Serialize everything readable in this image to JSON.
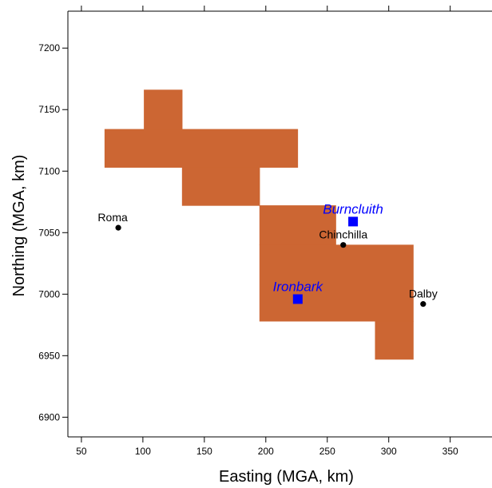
{
  "chart_data": {
    "type": "scatter",
    "title": "",
    "xlabel": "Easting (MGA, km)",
    "ylabel": "Northing (MGA, km)",
    "xlim": [
      39,
      384
    ],
    "ylim": [
      6884,
      7230
    ],
    "xticks": [
      50,
      100,
      150,
      200,
      250,
      300,
      350
    ],
    "yticks": [
      6900,
      6950,
      7000,
      7050,
      7100,
      7150,
      7200
    ],
    "top_ticks": [
      50,
      100,
      150,
      200,
      250,
      300,
      350
    ],
    "grid": false,
    "legend": "none",
    "region_color": "#CC6633",
    "region_blocks": [
      {
        "x": [
          101,
          132
        ],
        "y": [
          7134,
          7166
        ]
      },
      {
        "x": [
          69,
          226
        ],
        "y": [
          7103,
          7134
        ]
      },
      {
        "x": [
          132,
          195
        ],
        "y": [
          7072,
          7103
        ]
      },
      {
        "x": [
          195,
          257
        ],
        "y": [
          7040,
          7072
        ]
      },
      {
        "x": [
          195,
          320
        ],
        "y": [
          6978,
          7040
        ]
      },
      {
        "x": [
          289,
          320
        ],
        "y": [
          6947,
          6978
        ]
      }
    ],
    "towns": [
      {
        "name": "Roma",
        "x": 80,
        "y": 7054,
        "label_dx": -7,
        "label_dy": -8,
        "anchor": "middle"
      },
      {
        "name": "Chinchilla",
        "x": 263,
        "y": 7040,
        "label_dx": 0,
        "label_dy": -8,
        "anchor": "middle"
      },
      {
        "name": "Dalby",
        "x": 328,
        "y": 6992,
        "label_dx": 0,
        "label_dy": -8,
        "anchor": "middle"
      }
    ],
    "sites": [
      {
        "name": "Burncluith",
        "x": 271,
        "y": 7059,
        "label_dx": 0,
        "label_dy": -10,
        "anchor": "middle"
      },
      {
        "name": "Ironbark",
        "x": 226,
        "y": 6996,
        "label_dx": 0,
        "label_dy": -10,
        "anchor": "middle"
      }
    ],
    "town_color": "#000000",
    "site_color": "#0000FF"
  }
}
